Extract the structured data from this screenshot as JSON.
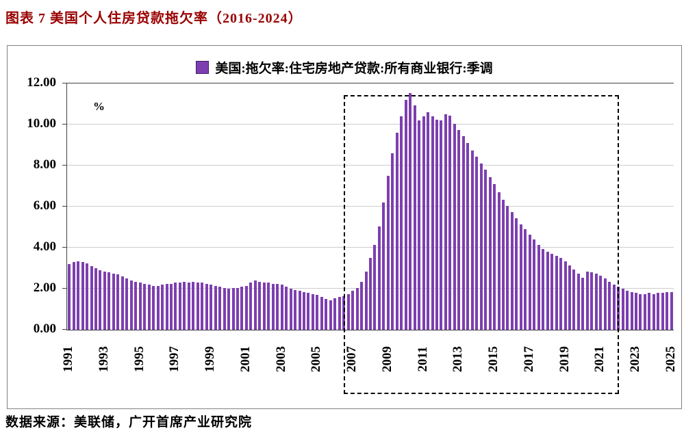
{
  "page": {
    "title": "图表 7 美国个人住房贷款拖欠率（2016-2024）",
    "source_note": "数据来源：美联储，广开首席产业研究院"
  },
  "chart": {
    "legend_label": "美国:拖欠率:住宅房地产贷款:所有商业银行:季调",
    "colors": {
      "bar": "#7D3FAF",
      "legend_swatch_border": "#3F1A66",
      "title_text": "#990000",
      "highlight_border": "#000000",
      "gridline": "#CDCDCD"
    }
  },
  "chart_data": {
    "type": "bar",
    "title": "美国:拖欠率:住宅房地产贷款:所有商业银行:季调",
    "ylabel": "%",
    "ylim": [
      0,
      12
    ],
    "y_ticks": [
      "0.00",
      "2.00",
      "4.00",
      "6.00",
      "8.00",
      "10.00",
      "12.00"
    ],
    "x_start_year": 1991,
    "x_frequency": "quarterly",
    "x_tick_labels": [
      "1991",
      "1993",
      "1995",
      "1997",
      "1999",
      "2001",
      "2003",
      "2005",
      "2007",
      "2009",
      "2011",
      "2013",
      "2015",
      "2017",
      "2019",
      "2021",
      "2023",
      "2025"
    ],
    "legend_position": "top-center",
    "grid": true,
    "values": [
      3.2,
      3.3,
      3.35,
      3.3,
      3.25,
      3.1,
      3.0,
      2.9,
      2.85,
      2.8,
      2.75,
      2.7,
      2.6,
      2.5,
      2.4,
      2.35,
      2.3,
      2.25,
      2.2,
      2.15,
      2.15,
      2.2,
      2.25,
      2.25,
      2.3,
      2.3,
      2.35,
      2.3,
      2.35,
      2.3,
      2.3,
      2.25,
      2.2,
      2.15,
      2.1,
      2.05,
      2.0,
      2.05,
      2.05,
      2.1,
      2.15,
      2.3,
      2.4,
      2.35,
      2.3,
      2.3,
      2.25,
      2.25,
      2.2,
      2.1,
      2.0,
      1.95,
      1.9,
      1.85,
      1.8,
      1.75,
      1.7,
      1.6,
      1.5,
      1.45,
      1.55,
      1.6,
      1.65,
      1.75,
      1.9,
      2.05,
      2.35,
      2.85,
      3.5,
      4.15,
      5.05,
      6.2,
      7.5,
      8.6,
      9.6,
      10.4,
      11.2,
      11.55,
      10.95,
      10.2,
      10.4,
      10.6,
      10.4,
      10.25,
      10.2,
      10.5,
      10.45,
      10.05,
      9.75,
      9.45,
      9.1,
      8.75,
      8.45,
      8.1,
      7.8,
      7.45,
      7.1,
      6.7,
      6.35,
      6.05,
      5.75,
      5.45,
      5.15,
      4.9,
      4.65,
      4.4,
      4.15,
      3.95,
      3.8,
      3.7,
      3.6,
      3.5,
      3.35,
      3.15,
      2.95,
      2.75,
      2.55,
      2.85,
      2.8,
      2.75,
      2.65,
      2.5,
      2.35,
      2.2,
      2.1,
      2.0,
      1.9,
      1.85,
      1.8,
      1.75,
      1.75,
      1.8,
      1.75,
      1.8,
      1.8,
      1.85,
      1.85
    ],
    "highlight_box": {
      "start_year": 2006.6,
      "end_year": 2022.0
    }
  }
}
